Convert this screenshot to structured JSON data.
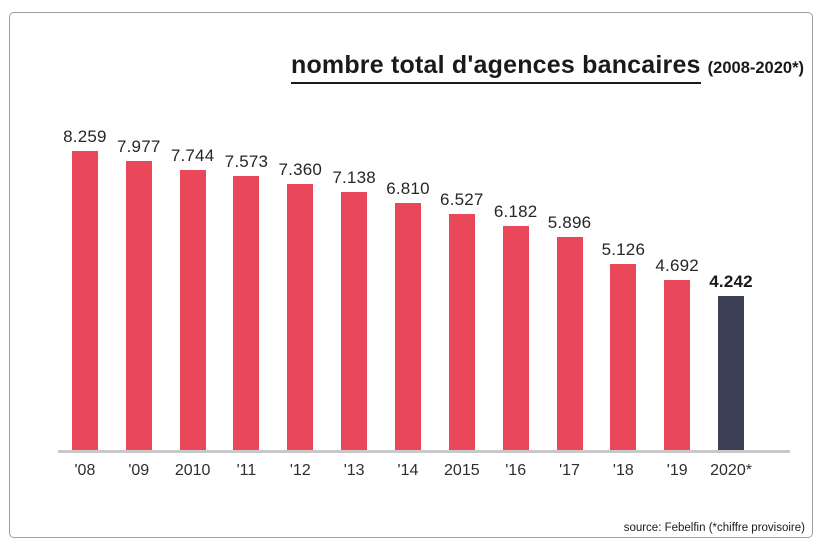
{
  "chart_data": {
    "type": "bar",
    "title": "nombre total d'agences bancaires",
    "subtitle": "(2008-2020*)",
    "categories": [
      "'08",
      "'09",
      "2010",
      "'11",
      "'12",
      "'13",
      "'14",
      "2015",
      "'16",
      "'17",
      "'18",
      "'19",
      "2020*"
    ],
    "values": [
      8259,
      7977,
      7744,
      7573,
      7360,
      7138,
      6810,
      6527,
      6182,
      5896,
      5126,
      4692,
      4242
    ],
    "value_labels": [
      "8.259",
      "7.977",
      "7.744",
      "7.573",
      "7.360",
      "7.138",
      "6.810",
      "6.527",
      "6.182",
      "5.896",
      "5.126",
      "4.692",
      "4.242"
    ],
    "highlight_index": 12,
    "colors": {
      "bar": "#e8485a",
      "highlight_bar": "#3b3f55",
      "axis_line": "#c9c9c9",
      "text": "#262626"
    },
    "xlabel": "",
    "ylabel": "",
    "ylim": [
      0,
      8259
    ],
    "grid": false,
    "legend": "none",
    "source": "source: Febelfin (*chiffre provisoire)"
  }
}
